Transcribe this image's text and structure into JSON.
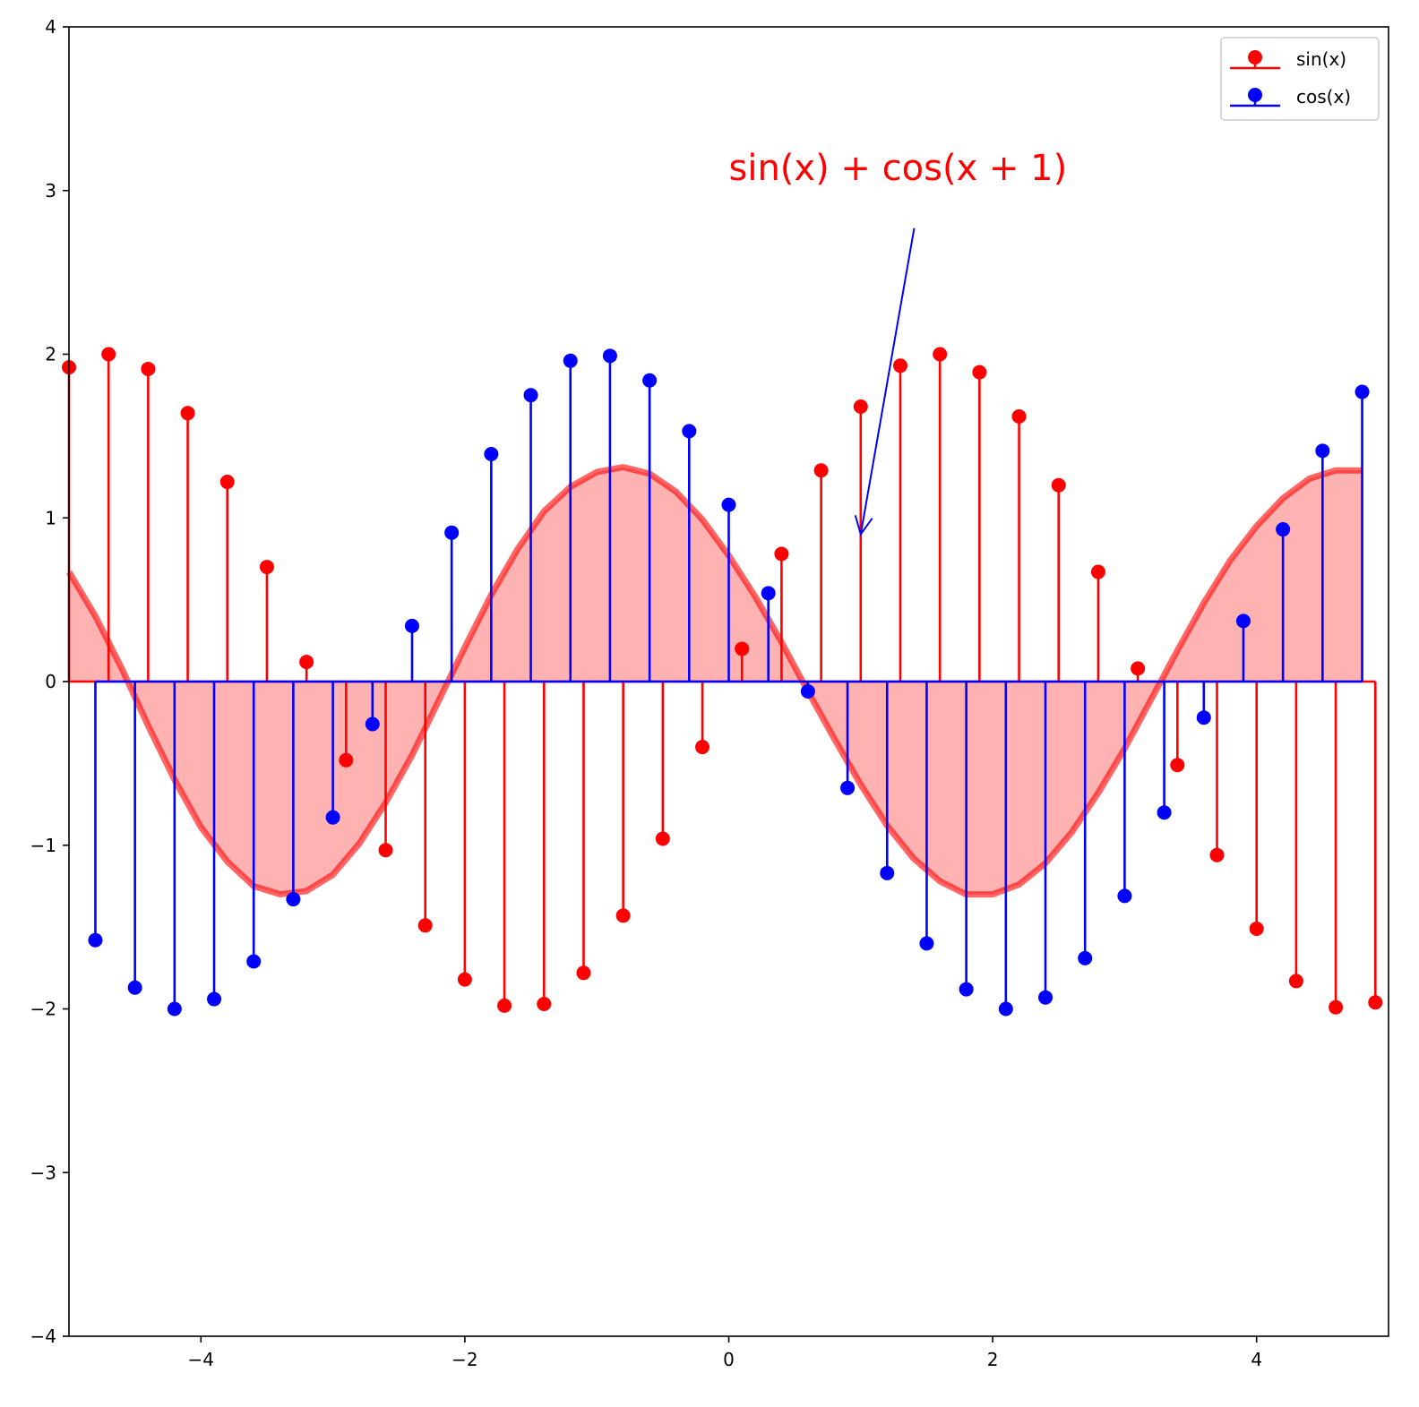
{
  "chart_data": {
    "type": "stem",
    "xlim": [
      -5,
      5
    ],
    "ylim": [
      -4,
      4
    ],
    "xticks": [
      -4,
      -2,
      0,
      2,
      4
    ],
    "xtick_labels": [
      "−4",
      "−2",
      "0",
      "2",
      "4"
    ],
    "yticks": [
      -4,
      -3,
      -2,
      -1,
      0,
      1,
      2,
      3,
      4
    ],
    "ytick_labels": [
      "−4",
      "−3",
      "−2",
      "−1",
      "0",
      "1",
      "2",
      "3",
      "4"
    ],
    "grid": false,
    "legend_position": "upper right",
    "series": [
      {
        "name": "sin(x)",
        "legend_label": "sin(x)",
        "color": "#ff0000",
        "kind": "stem",
        "x": [
          -5.0,
          -4.7,
          -4.4,
          -4.1,
          -3.8,
          -3.5,
          -3.2,
          -2.9,
          -2.6,
          -2.3,
          -2.0,
          -1.7,
          -1.4,
          -1.1,
          -0.8,
          -0.5,
          -0.2,
          0.1,
          0.4,
          0.7,
          1.0,
          1.3,
          1.6,
          1.9,
          2.2,
          2.5,
          2.8,
          3.1,
          3.4,
          3.7,
          4.0,
          4.3,
          4.6,
          4.9
        ],
        "y": [
          1.92,
          2.0,
          1.91,
          1.64,
          1.22,
          0.7,
          0.12,
          -0.48,
          -1.03,
          -1.49,
          -1.82,
          -1.98,
          -1.97,
          -1.78,
          -1.43,
          -0.96,
          -0.4,
          0.2,
          0.78,
          1.29,
          1.68,
          1.93,
          2.0,
          1.89,
          1.62,
          1.2,
          0.67,
          0.08,
          -0.51,
          -1.06,
          -1.51,
          -1.83,
          -1.99,
          -1.96
        ]
      },
      {
        "name": "cos(x)",
        "legend_label": "cos(x)",
        "color": "#0000ff",
        "kind": "stem",
        "x": [
          -4.8,
          -4.5,
          -4.2,
          -3.9,
          -3.6,
          -3.3,
          -3.0,
          -2.7,
          -2.4,
          -2.1,
          -1.8,
          -1.5,
          -1.2,
          -0.9,
          -0.6,
          -0.3,
          0.0,
          0.3,
          0.6,
          0.9,
          1.2,
          1.5,
          1.8,
          2.1,
          2.4,
          2.7,
          3.0,
          3.3,
          3.6,
          3.9,
          4.2,
          4.5,
          4.8
        ],
        "y": [
          -1.58,
          -1.87,
          -2.0,
          -1.94,
          -1.71,
          -1.33,
          -0.83,
          -0.26,
          0.34,
          0.91,
          1.39,
          1.75,
          1.96,
          1.99,
          1.84,
          1.53,
          1.08,
          0.54,
          -0.06,
          -0.65,
          -1.17,
          -1.6,
          -1.88,
          -2.0,
          -1.93,
          -1.69,
          -1.31,
          -0.8,
          -0.22,
          0.37,
          0.93,
          1.41,
          1.77
        ]
      },
      {
        "name": "sin(x)+cos(x+1)",
        "color": "#ff0000",
        "kind": "line_fill",
        "x": [
          -5.0,
          -4.8,
          -4.6,
          -4.4,
          -4.2,
          -4.0,
          -3.8,
          -3.6,
          -3.4,
          -3.2,
          -3.0,
          -2.8,
          -2.6,
          -2.4,
          -2.2,
          -2.0,
          -1.8,
          -1.6,
          -1.4,
          -1.2,
          -1.0,
          -0.8,
          -0.6,
          -0.4,
          -0.2,
          0.0,
          0.2,
          0.4,
          0.6,
          0.8,
          1.0,
          1.2,
          1.4,
          1.6,
          1.8,
          2.0,
          2.2,
          2.4,
          2.6,
          2.8,
          3.0,
          3.2,
          3.4,
          3.6,
          3.8,
          4.0,
          4.2,
          4.4,
          4.6,
          4.8
        ],
        "y": [
          0.67,
          0.4,
          0.08,
          -0.27,
          -0.6,
          -0.89,
          -1.1,
          -1.25,
          -1.3,
          -1.28,
          -1.18,
          -0.99,
          -0.74,
          -0.45,
          -0.12,
          0.21,
          0.53,
          0.81,
          1.04,
          1.19,
          1.28,
          1.31,
          1.27,
          1.16,
          0.99,
          0.77,
          0.52,
          0.24,
          -0.06,
          -0.35,
          -0.63,
          -0.88,
          -1.08,
          -1.22,
          -1.3,
          -1.3,
          -1.24,
          -1.11,
          -0.92,
          -0.68,
          -0.41,
          -0.11,
          0.19,
          0.48,
          0.74,
          0.95,
          1.12,
          1.24,
          1.29,
          1.29
        ]
      }
    ],
    "annotation": {
      "text": "sin(x) + cos(x + 1)",
      "color": "#ff0000",
      "arrow_color": "#0000ff",
      "xy": [
        1.0,
        0.9
      ],
      "xytext": [
        0.0,
        3.0
      ]
    }
  }
}
